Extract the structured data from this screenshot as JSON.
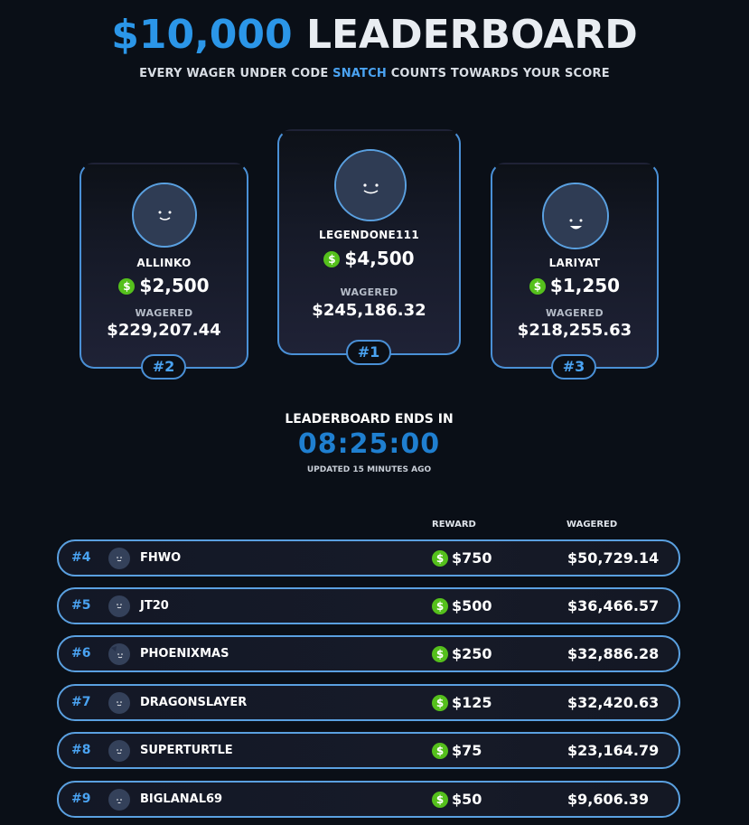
{
  "header": {
    "amount": "$10,000",
    "title_word": "LEADERBOARD",
    "subtitle_pre": "EVERY WAGER UNDER CODE",
    "subtitle_code": "SNATCH",
    "subtitle_post": "COUNTS TOWARDS YOUR SCORE"
  },
  "podium": {
    "first": {
      "name": "LEGENDONE111",
      "prize": "$4,500",
      "wager_label": "WAGERED",
      "wagered": "$245,186.32",
      "rank": "#1"
    },
    "second": {
      "name": "ALLINKO",
      "prize": "$2,500",
      "wager_label": "WAGERED",
      "wagered": "$229,207.44",
      "rank": "#2"
    },
    "third": {
      "name": "LARIYAT",
      "prize": "$1,250",
      "wager_label": "WAGERED",
      "wagered": "$218,255.63",
      "rank": "#3"
    }
  },
  "countdown": {
    "label": "LEADERBOARD ENDS IN",
    "time": "08:25:00",
    "updated": "UPDATED 15 MINUTES AGO"
  },
  "table": {
    "col_reward": "REWARD",
    "col_wagered": "WAGERED",
    "rows": [
      {
        "rank": "#4",
        "name": "FHWO",
        "reward": "$750",
        "wagered": "$50,729.14"
      },
      {
        "rank": "#5",
        "name": "JT20",
        "reward": "$500",
        "wagered": "$36,466.57"
      },
      {
        "rank": "#6",
        "name": "PHOENIXMAS",
        "reward": "$250",
        "wagered": "$32,886.28"
      },
      {
        "rank": "#7",
        "name": "DRAGONSLAYER",
        "reward": "$125",
        "wagered": "$32,420.63"
      },
      {
        "rank": "#8",
        "name": "SUPERTURTLE",
        "reward": "$75",
        "wagered": "$23,164.79"
      },
      {
        "rank": "#9",
        "name": "BIGLANAL69",
        "reward": "$50",
        "wagered": "$9,606.39"
      }
    ]
  },
  "icons": {
    "coin_symbol": "$",
    "coin_icon": "dollar-coin-icon",
    "avatar_icon": "smiley-avatar-icon"
  },
  "colors": {
    "accent": "#2b96e8",
    "coin": "#55c01c",
    "background": "#0a0f17",
    "border": "#4a90d6"
  }
}
